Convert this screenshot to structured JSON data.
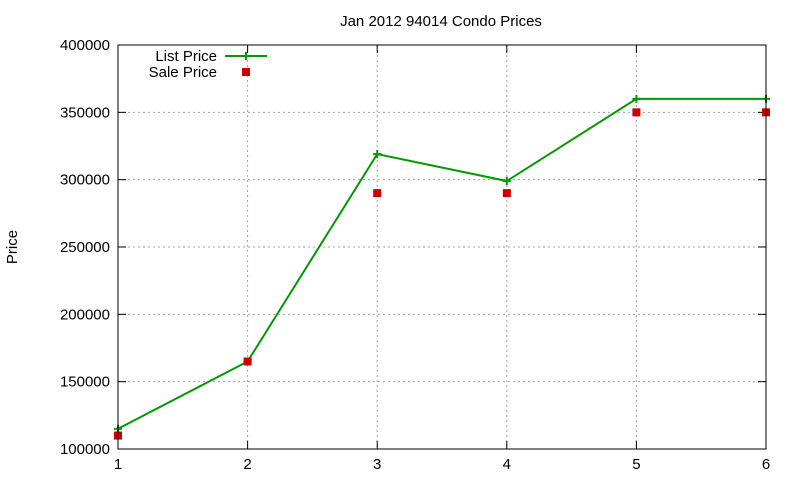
{
  "chart_data": {
    "type": "line",
    "title": "Jan 2012 94014 Condo Prices",
    "xlabel": "",
    "ylabel": "Price",
    "x": [
      1,
      2,
      3,
      4,
      5,
      6
    ],
    "xlim": [
      1,
      6
    ],
    "ylim": [
      100000,
      400000
    ],
    "xticks": [
      "1",
      "2",
      "3",
      "4",
      "5",
      "6"
    ],
    "yticks": [
      "100000",
      "150000",
      "200000",
      "250000",
      "300000",
      "350000",
      "400000"
    ],
    "grid": true,
    "legend_position": "top-left",
    "series": [
      {
        "name": "List Price",
        "style": "line-points",
        "marker": "plus",
        "color": "#009900",
        "values": [
          115000,
          165000,
          319000,
          299000,
          360000,
          360000
        ]
      },
      {
        "name": "Sale Price",
        "style": "points",
        "marker": "square",
        "color": "#cc0000",
        "values": [
          110000,
          165000,
          290000,
          290000,
          350000,
          350000
        ]
      }
    ]
  }
}
